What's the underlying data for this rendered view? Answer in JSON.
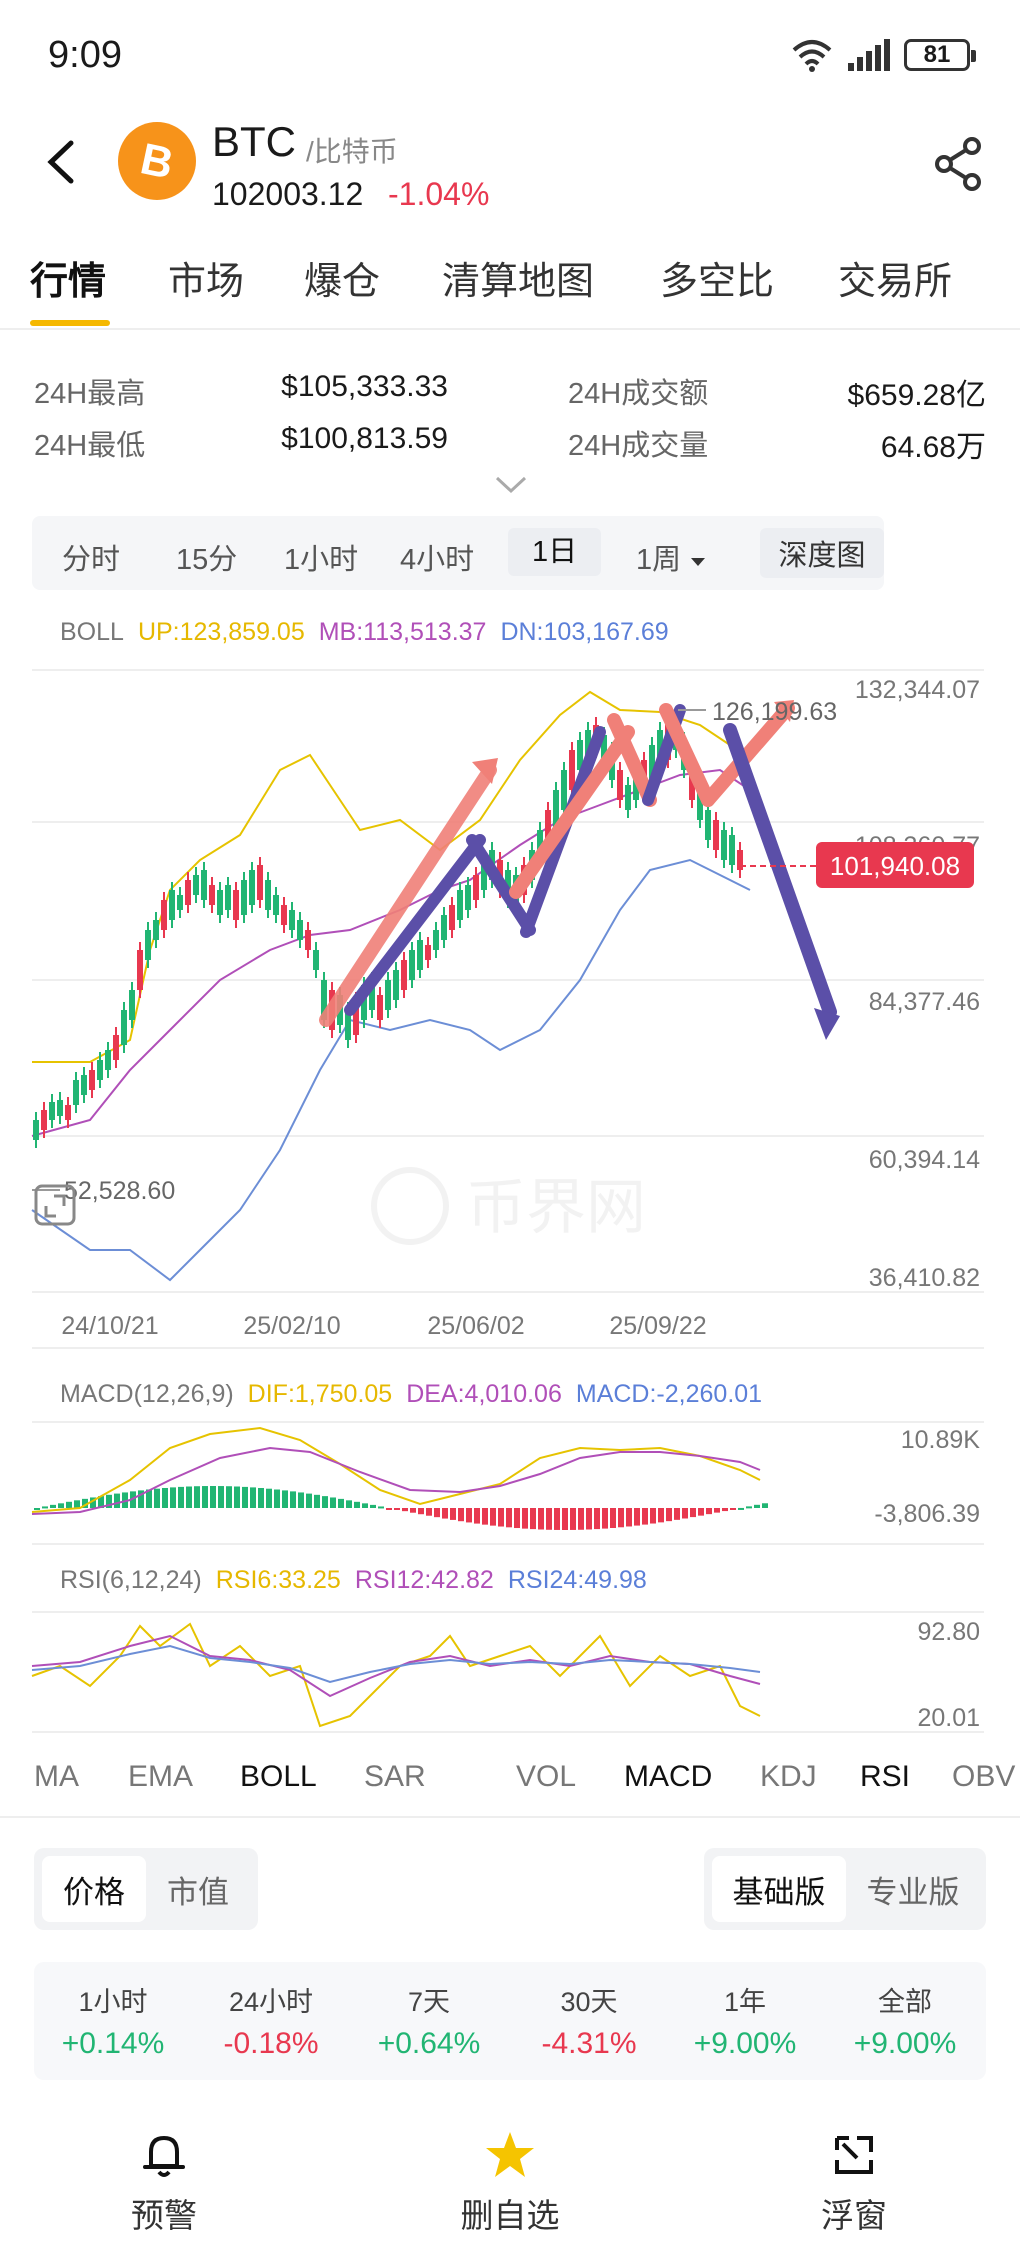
{
  "status": {
    "time": "9:09",
    "battery": "81"
  },
  "coin": {
    "symbol": "BTC",
    "name": "/比特币",
    "price": "102003.12",
    "change": "-1.04%"
  },
  "tabs": [
    "行情",
    "市场",
    "爆仓",
    "清算地图",
    "多空比",
    "交易所"
  ],
  "stats": {
    "high_label": "24H最高",
    "high_value": "$105,333.33",
    "low_label": "24H最低",
    "low_value": "$100,813.59",
    "turnover_label": "24H成交额",
    "turnover_value": "$659.28亿",
    "volume_label": "24H成交量",
    "volume_value": "64.68万"
  },
  "intervals": {
    "items": [
      "分时",
      "15分",
      "1小时",
      "4小时",
      "1日",
      "1周"
    ],
    "active": "1日",
    "depth": "深度图"
  },
  "boll": {
    "name": "BOLL",
    "up": "UP:123,859.05",
    "mb": "MB:113,513.37",
    "dn": "DN:103,167.69"
  },
  "chart": {
    "y_ticks": [
      "132,344.07",
      "108,360.77",
      "84,377.46",
      "60,394.14",
      "36,410.82"
    ],
    "x_ticks": [
      "24/10/21",
      "25/02/10",
      "25/06/02",
      "25/09/22"
    ],
    "max_label": "126,199.63",
    "min_label": "52,528.60",
    "current_price": "101,940.08",
    "watermark": "币界网"
  },
  "macd": {
    "name": "MACD(12,26,9)",
    "dif": "DIF:1,750.05",
    "dea": "DEA:4,010.06",
    "macd": "MACD:-2,260.01",
    "top": "10.89K",
    "bottom": "-3,806.39"
  },
  "rsi": {
    "name": "RSI(6,12,24)",
    "rsi6": "RSI6:33.25",
    "rsi12": "RSI12:42.82",
    "rsi24": "RSI24:49.98",
    "top": "92.80",
    "bottom": "20.01"
  },
  "indicators": [
    "MA",
    "EMA",
    "BOLL",
    "SAR",
    "VOL",
    "MACD",
    "KDJ",
    "RSI",
    "OBV"
  ],
  "seg_left": [
    "价格",
    "市值"
  ],
  "seg_right": [
    "基础版",
    "专业版"
  ],
  "performance": [
    {
      "label": "1小时",
      "value": "+0.14%",
      "dir": "up"
    },
    {
      "label": "24小时",
      "value": "-0.18%",
      "dir": "down"
    },
    {
      "label": "7天",
      "value": "+0.64%",
      "dir": "up"
    },
    {
      "label": "30天",
      "value": "-4.31%",
      "dir": "down"
    },
    {
      "label": "1年",
      "value": "+9.00%",
      "dir": "up"
    },
    {
      "label": "全部",
      "value": "+9.00%",
      "dir": "up"
    }
  ],
  "nav": {
    "alert": "预警",
    "watchlist": "删自选",
    "float": "浮窗"
  },
  "colors": {
    "up": "#21b573",
    "down": "#e8384f",
    "accent": "#f5b800",
    "brand": "#f7931a"
  }
}
